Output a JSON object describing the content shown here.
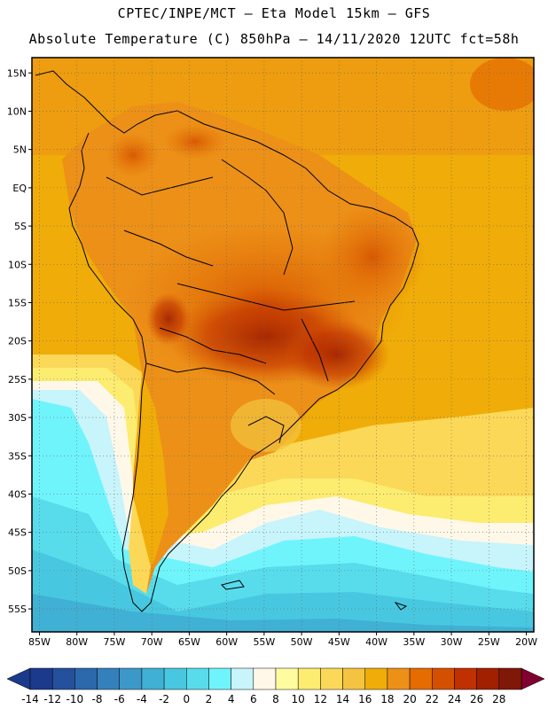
{
  "header": {
    "line1": "CPTEC/INPE/MCT –  Eta Model 15km – GFS",
    "line2": "Absolute Temperature (C) 850hPa – 14/11/2020 12UTC fct=58h"
  },
  "map": {
    "region": "South America",
    "lon_range": [
      -86,
      -19
    ],
    "lat_range": [
      17,
      -58
    ],
    "lat_labels": [
      "15N",
      "10N",
      "5N",
      "EQ",
      "5S",
      "10S",
      "15S",
      "20S",
      "25S",
      "30S",
      "35S",
      "40S",
      "45S",
      "50S",
      "55S"
    ],
    "lat_values": [
      15,
      10,
      5,
      0,
      -5,
      -10,
      -15,
      -20,
      -25,
      -30,
      -35,
      -40,
      -45,
      -50,
      -55
    ],
    "lon_labels": [
      "85W",
      "80W",
      "75W",
      "70W",
      "65W",
      "60W",
      "55W",
      "50W",
      "45W",
      "40W",
      "35W",
      "30W",
      "25W",
      "20W"
    ],
    "lon_values": [
      -85,
      -80,
      -75,
      -70,
      -65,
      -60,
      -55,
      -50,
      -45,
      -40,
      -35,
      -30,
      -25,
      -20
    ]
  },
  "colorbar": {
    "labels": [
      "-14",
      "-12",
      "-10",
      "-8",
      "-6",
      "-4",
      "-2",
      "0",
      "2",
      "4",
      "6",
      "8",
      "10",
      "12",
      "14",
      "16",
      "18",
      "20",
      "22",
      "24",
      "26",
      "28"
    ],
    "colors": [
      "#1c3a8c",
      "#24509c",
      "#2c68ac",
      "#3480bc",
      "#3c98c8",
      "#40b0d4",
      "#48c8e0",
      "#58dcec",
      "#70f4fc",
      "#c8f4fc",
      "#fff8e8",
      "#fffca0",
      "#fcec70",
      "#fcd858",
      "#f4c440",
      "#f0ac08",
      "#ec9018",
      "#e46c00",
      "#d45000",
      "#c03000",
      "#a02000",
      "#801808"
    ]
  },
  "icons": {
    "left_arrow": "colorbar-left-arrow-icon",
    "right_arrow": "colorbar-right-arrow-icon"
  }
}
